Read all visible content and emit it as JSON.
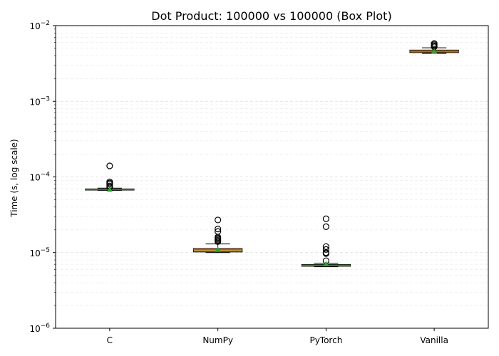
{
  "chart_data": {
    "type": "box",
    "title": "Dot Product: 100000 vs 100000 (Box Plot)",
    "xlabel": "",
    "ylabel": "Time (s, log scale)",
    "yscale": "log",
    "ylim": [
      1e-06,
      0.01
    ],
    "yticks": [
      {
        "exp": "−6",
        "value": 1e-06
      },
      {
        "exp": "−5",
        "value": 1e-05
      },
      {
        "exp": "−4",
        "value": 0.0001
      },
      {
        "exp": "−3",
        "value": 0.001
      },
      {
        "exp": "−2",
        "value": 0.01
      }
    ],
    "tick_base": "10",
    "grid": {
      "major": true,
      "minor": true,
      "style": "dashed"
    },
    "colors": {
      "box_fill": "#ff8c33",
      "median": "#2ca02c",
      "mean_marker": "#2ca02c",
      "whisker": "#000000",
      "outlier": "#000000"
    },
    "categories": [
      "C",
      "NumPy",
      "PyTorch",
      "Vanilla"
    ],
    "boxes": [
      {
        "label": "C",
        "whisker_low": 6.65e-05,
        "q1": 6.7e-05,
        "median": 6.85e-05,
        "q3": 6.95e-05,
        "whisker_high": 7.1e-05,
        "mean": 6.9e-05,
        "outliers": [
          0.00014,
          8.6e-05,
          8.3e-05,
          8e-05,
          7.6e-05,
          7.3e-05
        ]
      },
      {
        "label": "NumPy",
        "whisker_low": 1e-05,
        "q1": 1.02e-05,
        "median": 1.09e-05,
        "q3": 1.13e-05,
        "whisker_high": 1.3e-05,
        "mean": 1.1e-05,
        "outliers": [
          2.7e-05,
          2.05e-05,
          1.9e-05,
          1.6e-05,
          1.55e-05,
          1.5e-05,
          1.45e-05,
          1.4e-05
        ]
      },
      {
        "label": "PyTorch",
        "whisker_low": 6.5e-06,
        "q1": 6.6e-06,
        "median": 6.8e-06,
        "q3": 6.95e-06,
        "whisker_high": 7.2e-06,
        "mean": 7.1e-06,
        "outliers": [
          2.8e-05,
          2.2e-05,
          1.2e-05,
          1.1e-05,
          1e-05,
          9.7e-06,
          7.8e-06
        ]
      },
      {
        "label": "Vanilla",
        "whisker_low": 0.0043,
        "q1": 0.0044,
        "median": 0.00455,
        "q3": 0.00475,
        "whisker_high": 0.0051,
        "mean": 0.0046,
        "outliers": [
          0.0058,
          0.0056,
          0.0054,
          0.00525
        ]
      }
    ]
  }
}
